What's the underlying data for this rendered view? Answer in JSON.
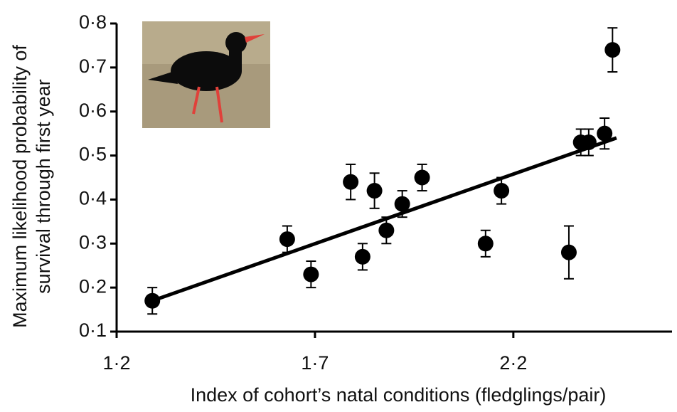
{
  "chart_data": {
    "type": "scatter",
    "xlabel": "Index of cohort’s natal conditions (fledglings/pair)",
    "ylabel": [
      "Maximum likelihood probability of",
      "survival through first year"
    ],
    "xlim": [
      1.2,
      2.6
    ],
    "ylim": [
      0.1,
      0.8
    ],
    "xticks": [
      {
        "value": 1.2,
        "label": "1·2"
      },
      {
        "value": 1.7,
        "label": "1·7"
      },
      {
        "value": 2.2,
        "label": "2·2"
      }
    ],
    "yticks": [
      {
        "value": 0.1,
        "label": "0·1"
      },
      {
        "value": 0.2,
        "label": "0·2"
      },
      {
        "value": 0.3,
        "label": "0·3"
      },
      {
        "value": 0.4,
        "label": "0·4"
      },
      {
        "value": 0.5,
        "label": "0·5"
      },
      {
        "value": 0.6,
        "label": "0·6"
      },
      {
        "value": 0.7,
        "label": "0·7"
      },
      {
        "value": 0.8,
        "label": "0·8"
      }
    ],
    "series": [
      {
        "color": "#000000",
        "x": [
          1.29,
          1.63,
          1.69,
          1.79,
          1.82,
          1.85,
          1.88,
          1.92,
          1.97,
          2.13,
          2.17,
          2.34,
          2.37,
          2.39,
          2.43,
          2.45
        ],
        "values": [
          0.17,
          0.31,
          0.23,
          0.44,
          0.27,
          0.42,
          0.33,
          0.39,
          0.45,
          0.3,
          0.42,
          0.28,
          0.53,
          0.53,
          0.55,
          0.74
        ],
        "errors": [
          0.03,
          0.03,
          0.03,
          0.04,
          0.03,
          0.04,
          0.03,
          0.03,
          0.03,
          0.03,
          0.03,
          0.06,
          0.03,
          0.03,
          0.035,
          0.05
        ]
      }
    ],
    "fit": {
      "x": [
        1.29,
        2.46
      ],
      "values": [
        0.17,
        0.54
      ],
      "color": "#000000"
    }
  }
}
